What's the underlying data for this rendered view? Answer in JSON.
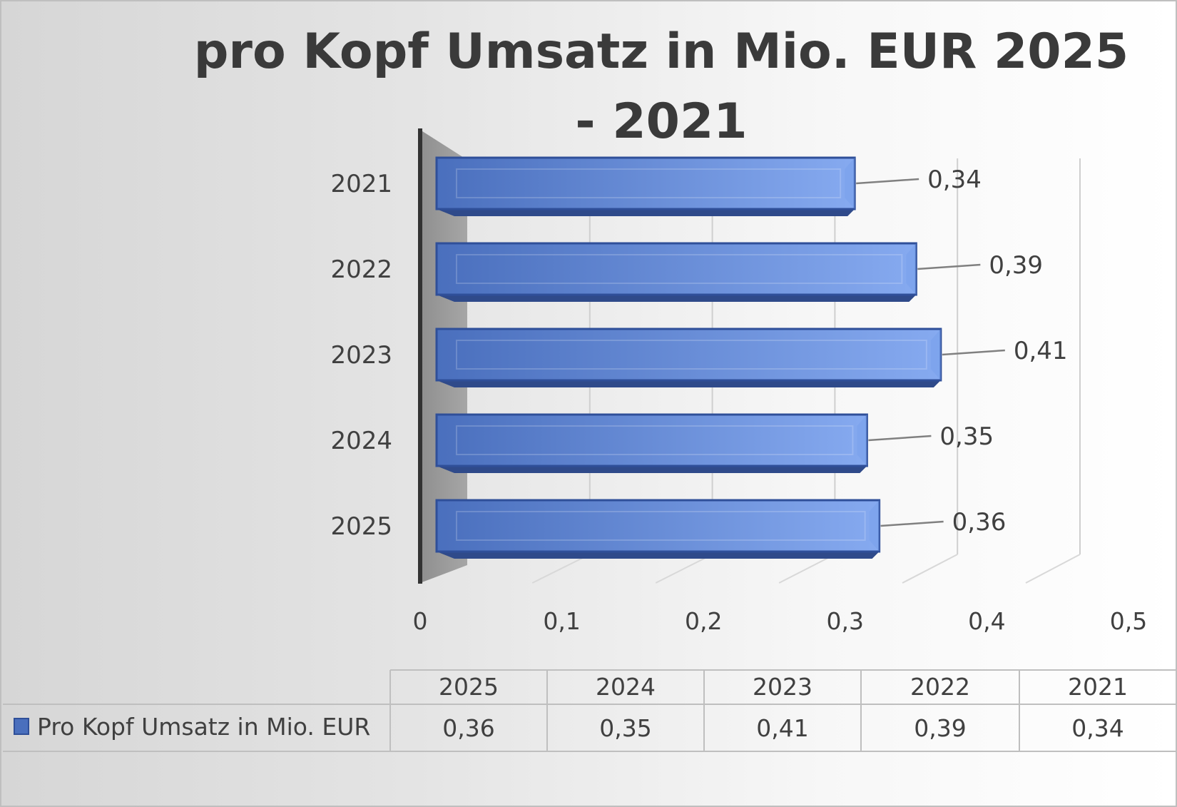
{
  "chart_data": {
    "type": "bar",
    "orientation": "horizontal",
    "title": "pro Kopf Umsatz in Mio. EUR 2025 - 2021",
    "categories": [
      "2021",
      "2022",
      "2023",
      "2024",
      "2025"
    ],
    "series": [
      {
        "name": "Pro Kopf Umsatz in Mio. EUR",
        "values": [
          0.34,
          0.39,
          0.41,
          0.35,
          0.36
        ]
      }
    ],
    "data_labels": [
      "0,34",
      "0,39",
      "0,41",
      "0,35",
      "0,36"
    ],
    "xlim": [
      0,
      0.5
    ],
    "x_ticks": [
      "0",
      "0,1",
      "0,2",
      "0,3",
      "0,4",
      "0,5"
    ],
    "grid": true,
    "data_table": {
      "headers": [
        "2025",
        "2024",
        "2023",
        "2022",
        "2021"
      ],
      "row_label": "Pro Kopf Umsatz in Mio. EUR",
      "cells": [
        "0,36",
        "0,35",
        "0,41",
        "0,39",
        "0,34"
      ]
    },
    "colors": {
      "bar_dark": "#4a6fbd",
      "bar_light": "#86aaf0",
      "bar_edge": "#2f4f99",
      "axis": "#333333",
      "wall": "#a6a6a6"
    }
  }
}
